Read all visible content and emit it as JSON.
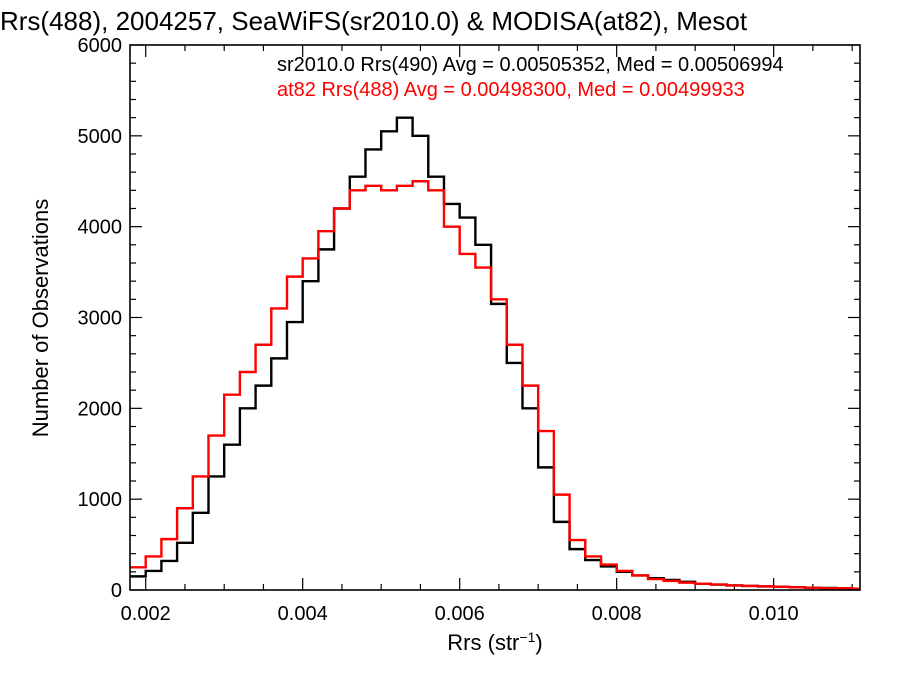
{
  "chart_data": {
    "type": "histogram",
    "title": "Rrs(488), 2004257, SeaWiFS(sr2010.0) & MODISA(at82), Mesot",
    "xlabel": "Rrs (str",
    "xlabel_sup": "−1",
    "xlabel_close": ")",
    "ylabel": "Number of Observations",
    "xlim": [
      0.0018,
      0.0111
    ],
    "ylim": [
      0,
      6000
    ],
    "x_ticks": [
      0.002,
      0.004,
      0.006,
      0.008,
      0.01
    ],
    "x_tick_labels": [
      "0.002",
      "0.004",
      "0.006",
      "0.008",
      "0.010"
    ],
    "y_ticks": [
      0,
      1000,
      2000,
      3000,
      4000,
      5000,
      6000
    ],
    "y_tick_labels": [
      "0",
      "1000",
      "2000",
      "3000",
      "4000",
      "5000",
      "6000"
    ],
    "legend": [
      {
        "text": "sr2010.0 Rrs(490) Avg = 0.00505352, Med = 0.00506994",
        "color": "#000000"
      },
      {
        "text": "at82 Rrs(488) Avg = 0.00498300, Med = 0.00499933",
        "color": "#ff0000"
      }
    ],
    "series": [
      {
        "color": "#000000",
        "points": [
          [
            0.0018,
            150
          ],
          [
            0.002,
            210
          ],
          [
            0.0022,
            320
          ],
          [
            0.0024,
            520
          ],
          [
            0.0026,
            850
          ],
          [
            0.0028,
            1250
          ],
          [
            0.003,
            1600
          ],
          [
            0.0032,
            2000
          ],
          [
            0.0034,
            2250
          ],
          [
            0.0036,
            2550
          ],
          [
            0.0038,
            2950
          ],
          [
            0.004,
            3400
          ],
          [
            0.0042,
            3750
          ],
          [
            0.0044,
            4200
          ],
          [
            0.0046,
            4550
          ],
          [
            0.0048,
            4850
          ],
          [
            0.005,
            5050
          ],
          [
            0.0052,
            5200
          ],
          [
            0.0054,
            5000
          ],
          [
            0.0056,
            4550
          ],
          [
            0.0058,
            4250
          ],
          [
            0.006,
            4100
          ],
          [
            0.0062,
            3800
          ],
          [
            0.0064,
            3150
          ],
          [
            0.0066,
            2500
          ],
          [
            0.0068,
            2000
          ],
          [
            0.007,
            1350
          ],
          [
            0.0072,
            750
          ],
          [
            0.0074,
            450
          ],
          [
            0.0076,
            330
          ],
          [
            0.0078,
            260
          ],
          [
            0.008,
            200
          ],
          [
            0.0082,
            160
          ],
          [
            0.0084,
            130
          ],
          [
            0.0086,
            110
          ],
          [
            0.0088,
            90
          ],
          [
            0.009,
            70
          ],
          [
            0.0092,
            60
          ],
          [
            0.0094,
            50
          ],
          [
            0.0096,
            45
          ],
          [
            0.0098,
            40
          ],
          [
            0.01,
            35
          ],
          [
            0.0102,
            30
          ],
          [
            0.0104,
            25
          ],
          [
            0.0106,
            22
          ],
          [
            0.0108,
            18
          ],
          [
            0.011,
            15
          ]
        ]
      },
      {
        "color": "#ff0000",
        "points": [
          [
            0.0018,
            250
          ],
          [
            0.002,
            370
          ],
          [
            0.0022,
            560
          ],
          [
            0.0024,
            900
          ],
          [
            0.0026,
            1250
          ],
          [
            0.0028,
            1700
          ],
          [
            0.003,
            2150
          ],
          [
            0.0032,
            2400
          ],
          [
            0.0034,
            2700
          ],
          [
            0.0036,
            3100
          ],
          [
            0.0038,
            3450
          ],
          [
            0.004,
            3650
          ],
          [
            0.0042,
            3950
          ],
          [
            0.0044,
            4200
          ],
          [
            0.0046,
            4400
          ],
          [
            0.0048,
            4450
          ],
          [
            0.005,
            4400
          ],
          [
            0.0052,
            4450
          ],
          [
            0.0054,
            4500
          ],
          [
            0.0056,
            4400
          ],
          [
            0.0058,
            4000
          ],
          [
            0.006,
            3700
          ],
          [
            0.0062,
            3550
          ],
          [
            0.0064,
            3200
          ],
          [
            0.0066,
            2700
          ],
          [
            0.0068,
            2250
          ],
          [
            0.007,
            1750
          ],
          [
            0.0072,
            1050
          ],
          [
            0.0074,
            550
          ],
          [
            0.0076,
            370
          ],
          [
            0.0078,
            280
          ],
          [
            0.008,
            210
          ],
          [
            0.0082,
            160
          ],
          [
            0.0084,
            120
          ],
          [
            0.0086,
            100
          ],
          [
            0.0088,
            80
          ],
          [
            0.009,
            70
          ],
          [
            0.0092,
            60
          ],
          [
            0.0094,
            50
          ],
          [
            0.0096,
            45
          ],
          [
            0.0098,
            40
          ],
          [
            0.01,
            35
          ],
          [
            0.0102,
            30
          ],
          [
            0.0104,
            25
          ],
          [
            0.0106,
            20
          ],
          [
            0.0108,
            18
          ],
          [
            0.011,
            15
          ]
        ]
      }
    ]
  }
}
